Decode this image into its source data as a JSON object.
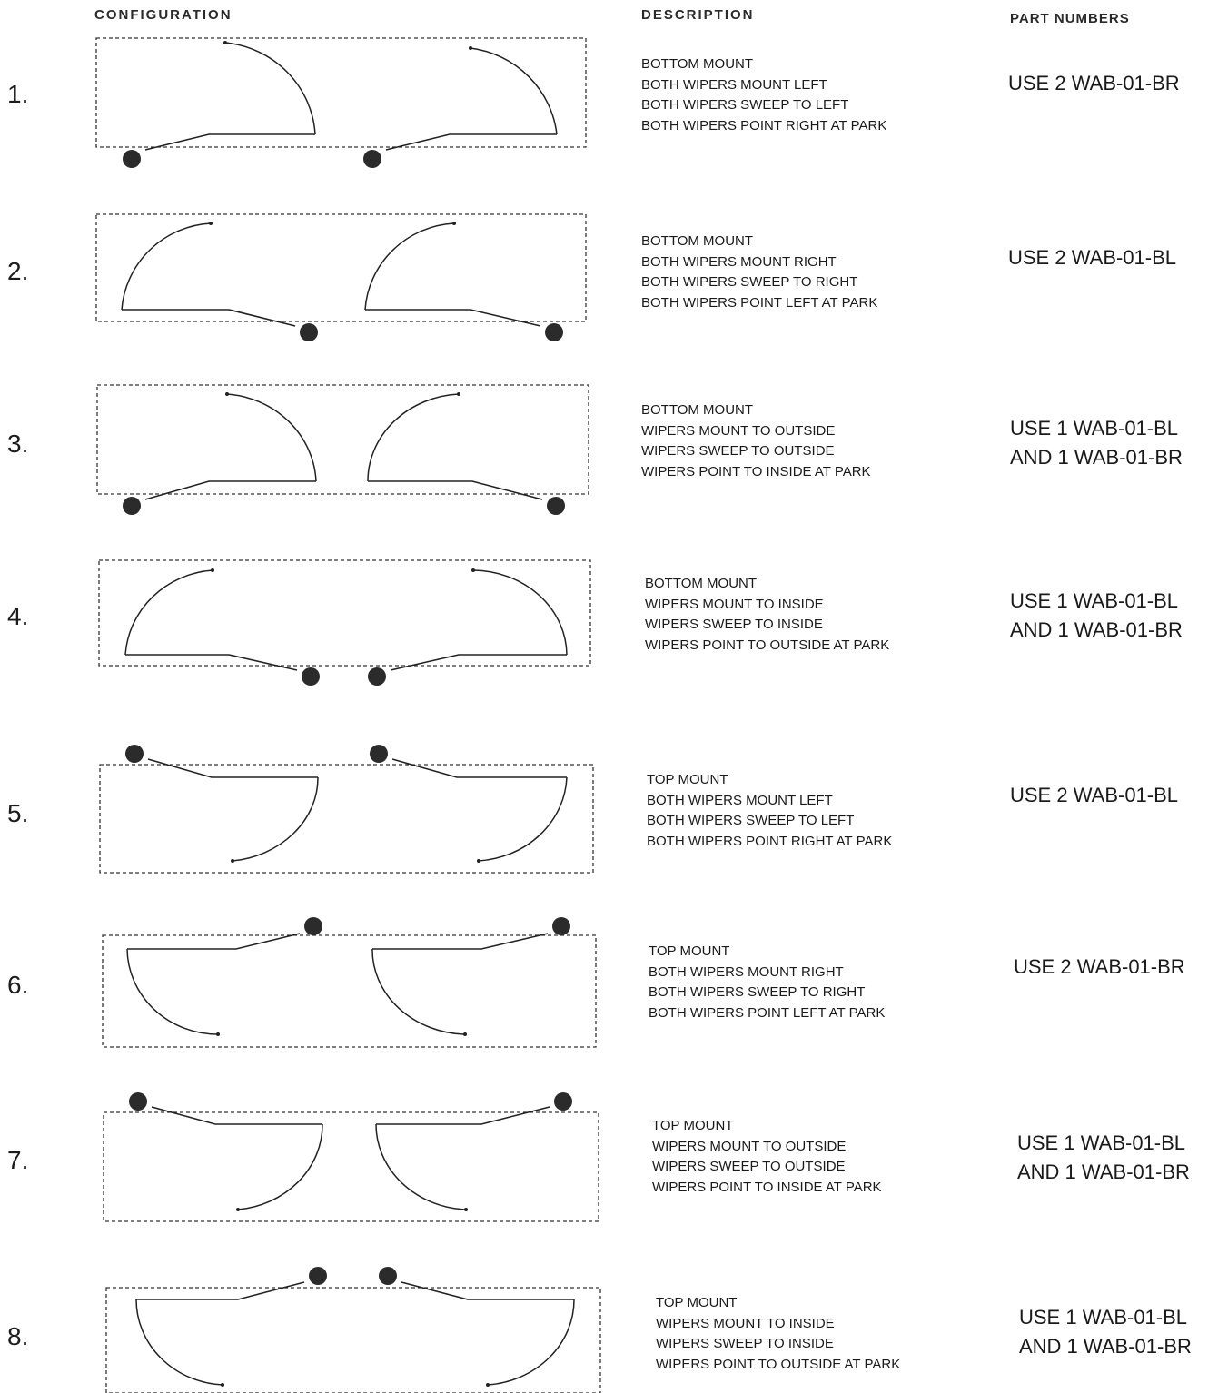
{
  "headers": {
    "configuration": "CONFIGURATION",
    "description": "DESCRIPTION",
    "part_numbers": "PART  NUMBERS"
  },
  "rows": [
    {
      "number": "1.",
      "description": [
        "BOTTOM MOUNT",
        "BOTH WIPERS MOUNT LEFT",
        "BOTH WIPERS SWEEP TO LEFT",
        "BOTH WIPERS POINT RIGHT AT PARK"
      ],
      "parts": [
        "USE 2 WAB-01-BR"
      ]
    },
    {
      "number": "2.",
      "description": [
        "BOTTOM MOUNT",
        "BOTH WIPERS MOUNT RIGHT",
        "BOTH WIPERS SWEEP TO RIGHT",
        "BOTH WIPERS POINT LEFT AT PARK"
      ],
      "parts": [
        "USE 2 WAB-01-BL"
      ]
    },
    {
      "number": "3.",
      "description": [
        "BOTTOM MOUNT",
        "WIPERS MOUNT TO OUTSIDE",
        "WIPERS SWEEP TO OUTSIDE",
        "WIPERS POINT TO INSIDE AT PARK"
      ],
      "parts": [
        "USE 1 WAB-01-BL",
        "AND 1 WAB-01-BR"
      ]
    },
    {
      "number": "4.",
      "description": [
        "BOTTOM MOUNT",
        "WIPERS MOUNT TO INSIDE",
        "WIPERS SWEEP TO INSIDE",
        "WIPERS POINT TO OUTSIDE AT PARK"
      ],
      "parts": [
        "USE 1 WAB-01-BL",
        "AND 1 WAB-01-BR"
      ]
    },
    {
      "number": "5.",
      "description": [
        "TOP MOUNT",
        "BOTH WIPERS MOUNT LEFT",
        "BOTH WIPERS SWEEP TO LEFT",
        "BOTH WIPERS POINT RIGHT AT PARK"
      ],
      "parts": [
        "USE 2 WAB-01-BL"
      ]
    },
    {
      "number": "6.",
      "description": [
        "TOP MOUNT",
        "BOTH WIPERS MOUNT RIGHT",
        "BOTH WIPERS SWEEP TO RIGHT",
        "BOTH WIPERS POINT LEFT AT PARK"
      ],
      "parts": [
        "USE 2 WAB-01-BR"
      ]
    },
    {
      "number": "7.",
      "description": [
        "TOP MOUNT",
        "WIPERS MOUNT TO OUTSIDE",
        "WIPERS SWEEP TO OUTSIDE",
        "WIPERS POINT TO INSIDE AT PARK"
      ],
      "parts": [
        "USE 1 WAB-01-BL",
        "AND 1 WAB-01-BR"
      ]
    },
    {
      "number": "8.",
      "description": [
        "TOP MOUNT",
        "WIPERS MOUNT TO INSIDE",
        "WIPERS SWEEP TO INSIDE",
        "WIPERS POINT TO OUTSIDE AT PARK"
      ],
      "parts": [
        "USE 1 WAB-01-BL",
        "AND 1 WAB-01-BR"
      ]
    }
  ]
}
